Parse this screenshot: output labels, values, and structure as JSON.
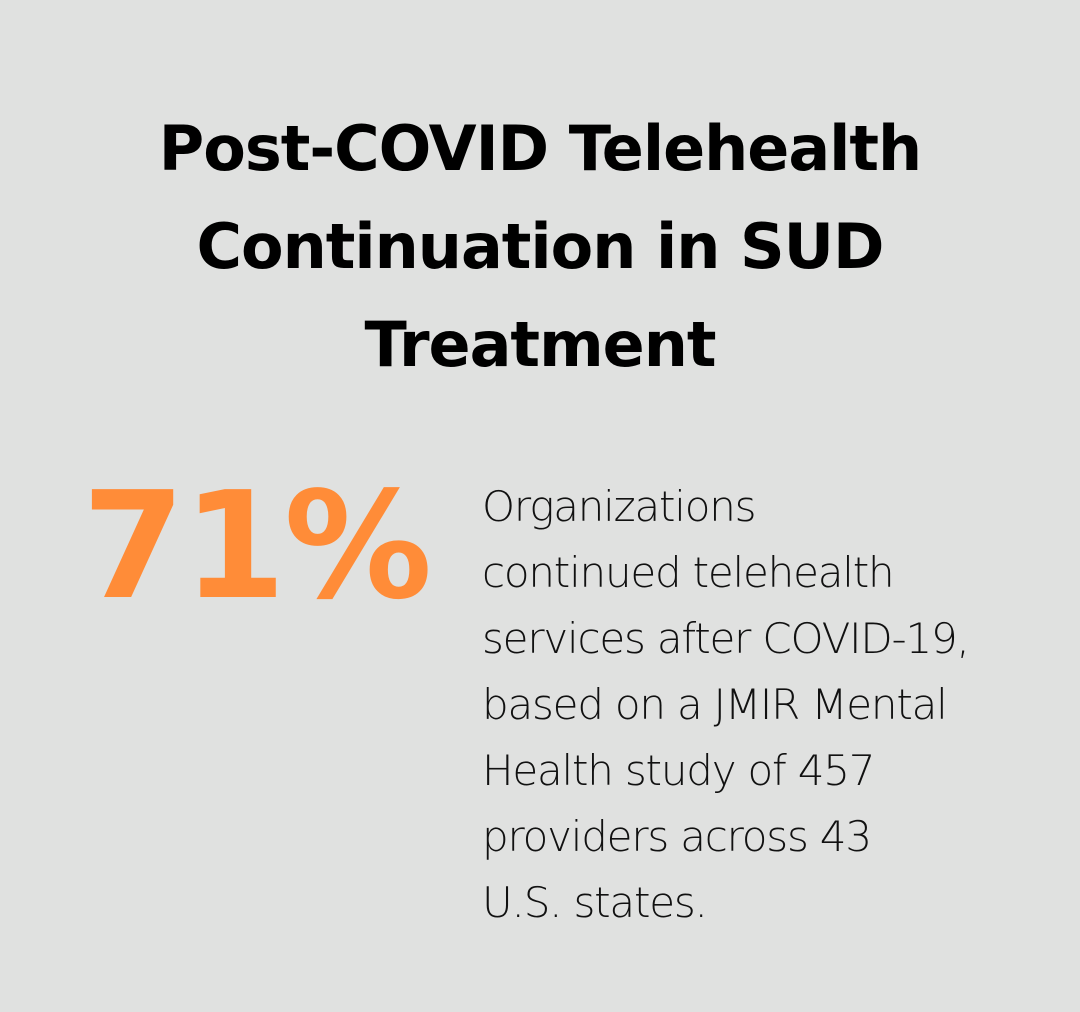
{
  "title": {
    "lines": [
      "Post-COVID Telehealth",
      "Continuation in SUD",
      "Treatment"
    ]
  },
  "stat": {
    "value": "71%",
    "color": "#FF8C38"
  },
  "description": {
    "lines": [
      "Organizations",
      "continued telehealth",
      "services after COVID-19,",
      "based on a JMIR Mental",
      "Health study of 457",
      "providers across 43",
      "U.S. states."
    ]
  },
  "colors": {
    "background": "#E0E1E0",
    "text": "#000000",
    "accent": "#FF8C38"
  }
}
